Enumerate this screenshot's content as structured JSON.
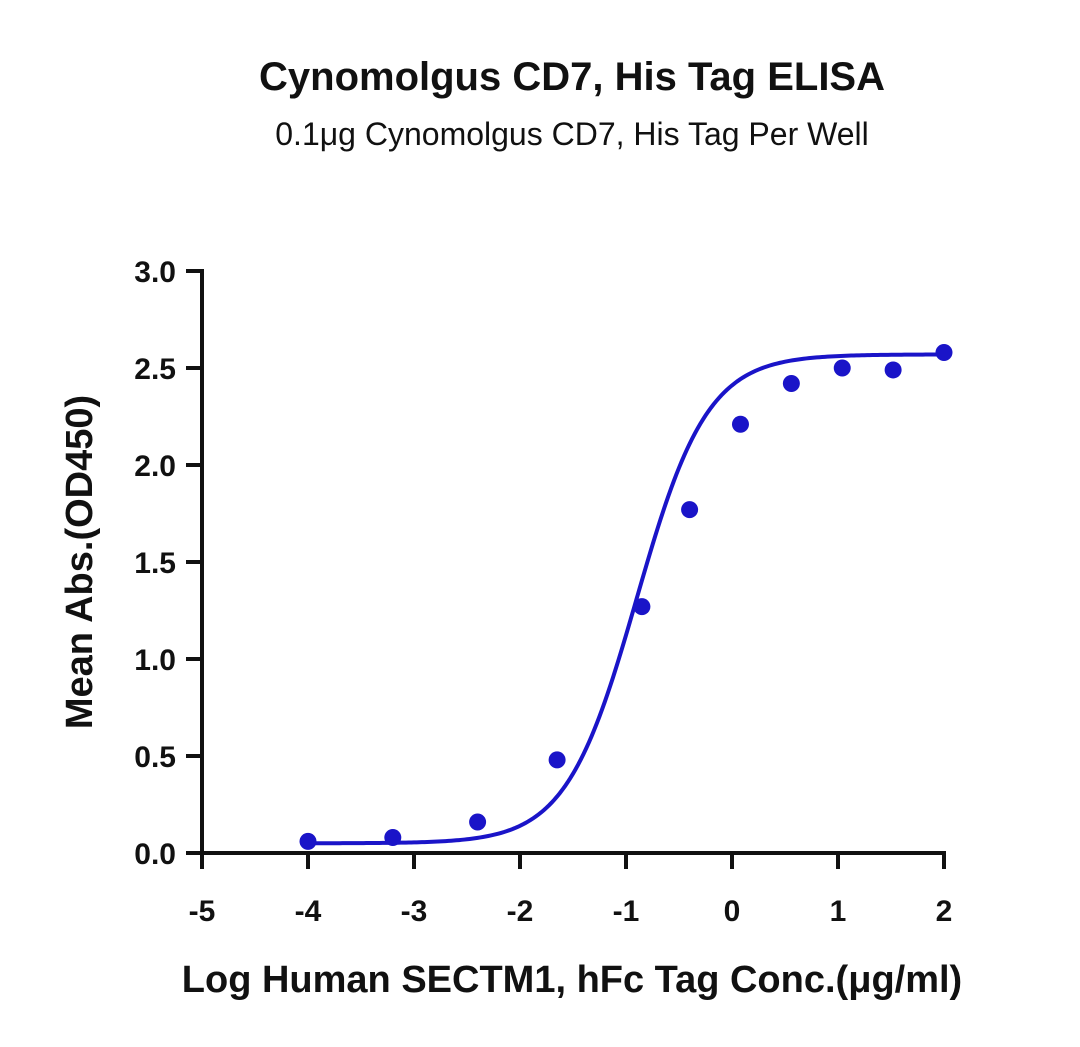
{
  "chart_data": {
    "type": "scatter",
    "title": "Cynomolgus CD7, His Tag ELISA",
    "subtitle": "0.1μg Cynomolgus CD7, His Tag Per Well",
    "xlabel": "Log Human SECTM1, hFc Tag Conc.(μg/ml)",
    "ylabel": "Mean Abs.(OD450)",
    "xlim": [
      -5,
      2
    ],
    "ylim": [
      0,
      3.0
    ],
    "x_ticks": [
      "-5",
      "-4",
      "-3",
      "-2",
      "-1",
      "0",
      "1",
      "2"
    ],
    "y_ticks": [
      "0.0",
      "0.5",
      "1.0",
      "1.5",
      "2.0",
      "2.5",
      "3.0"
    ],
    "grid": false,
    "color": "#1a14c8",
    "points": {
      "x": [
        -4.0,
        -3.2,
        -2.4,
        -1.65,
        -0.85,
        -0.4,
        0.08,
        0.56,
        1.04,
        1.52,
        2.0
      ],
      "y": [
        0.06,
        0.08,
        0.16,
        0.48,
        1.27,
        1.77,
        2.21,
        2.42,
        2.5,
        2.49,
        2.58
      ]
    },
    "fit_curve": {
      "type": "4PL",
      "bottom": 0.05,
      "top": 2.57,
      "log_ec50": -0.9,
      "hill_slope": 1.3,
      "x_range": [
        -4.0,
        2.0
      ]
    }
  }
}
